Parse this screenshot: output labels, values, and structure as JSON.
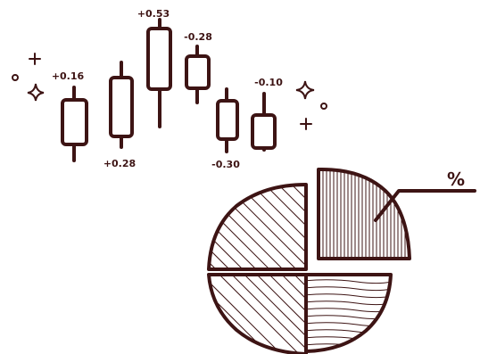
{
  "colors": {
    "ink": "#3d1414",
    "background": "#ffffff"
  },
  "candles": {
    "labels": [
      "+0.16",
      "+0.28",
      "+0.53",
      "-0.28",
      "-0.30",
      "-0.10"
    ]
  },
  "pie": {
    "symbol": "%"
  },
  "decorations": [
    "sparkle-icon",
    "plus-icon",
    "small-circle-icon"
  ]
}
